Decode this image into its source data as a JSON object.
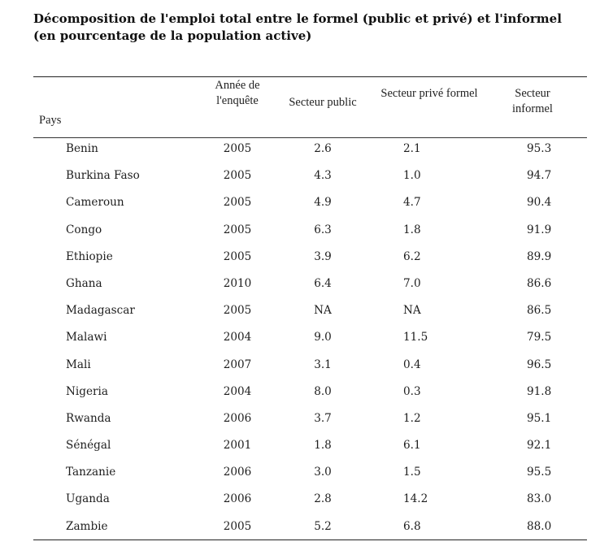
{
  "title": "Décomposition de l'emploi total entre le formel (public et privé) et l'informel (en pourcentage de la population active)",
  "headers": {
    "pays": "Pays",
    "annee": "Année de l'enquête",
    "public": "Secteur public",
    "prive": "Secteur privé formel",
    "informel": "Secteur informel"
  },
  "rows": [
    {
      "pays": "Benin",
      "annee": "2005",
      "public": "2.6",
      "prive": "2.1",
      "informel": "95.3"
    },
    {
      "pays": "Burkina Faso",
      "annee": "2005",
      "public": "4.3",
      "prive": "1.0",
      "informel": "94.7"
    },
    {
      "pays": "Cameroun",
      "annee": "2005",
      "public": "4.9",
      "prive": "4.7",
      "informel": "90.4"
    },
    {
      "pays": "Congo",
      "annee": "2005",
      "public": "6.3",
      "prive": "1.8",
      "informel": "91.9"
    },
    {
      "pays": "Ethiopie",
      "annee": "2005",
      "public": "3.9",
      "prive": "6.2",
      "informel": "89.9"
    },
    {
      "pays": "Ghana",
      "annee": "2010",
      "public": "6.4",
      "prive": "7.0",
      "informel": "86.6"
    },
    {
      "pays": "Madagascar",
      "annee": "2005",
      "public": "NA",
      "prive": "NA",
      "informel": "86.5"
    },
    {
      "pays": "Malawi",
      "annee": "2004",
      "public": "9.0",
      "prive": "11.5",
      "informel": "79.5"
    },
    {
      "pays": "Mali",
      "annee": "2007",
      "public": "3.1",
      "prive": "0.4",
      "informel": "96.5"
    },
    {
      "pays": "Nigeria",
      "annee": "2004",
      "public": "8.0",
      "prive": "0.3",
      "informel": "91.8"
    },
    {
      "pays": "Rwanda",
      "annee": "2006",
      "public": "3.7",
      "prive": "1.2",
      "informel": "95.1"
    },
    {
      "pays": "Sénégal",
      "annee": "2001",
      "public": "1.8",
      "prive": "6.1",
      "informel": "92.1"
    },
    {
      "pays": "Tanzanie",
      "annee": "2006",
      "public": "3.0",
      "prive": "1.5",
      "informel": "95.5"
    },
    {
      "pays": "Uganda",
      "annee": "2006",
      "public": "2.8",
      "prive": "14.2",
      "informel": "83.0"
    },
    {
      "pays": "Zambie",
      "annee": "2005",
      "public": "5.2",
      "prive": "6.8",
      "informel": "88.0"
    }
  ]
}
